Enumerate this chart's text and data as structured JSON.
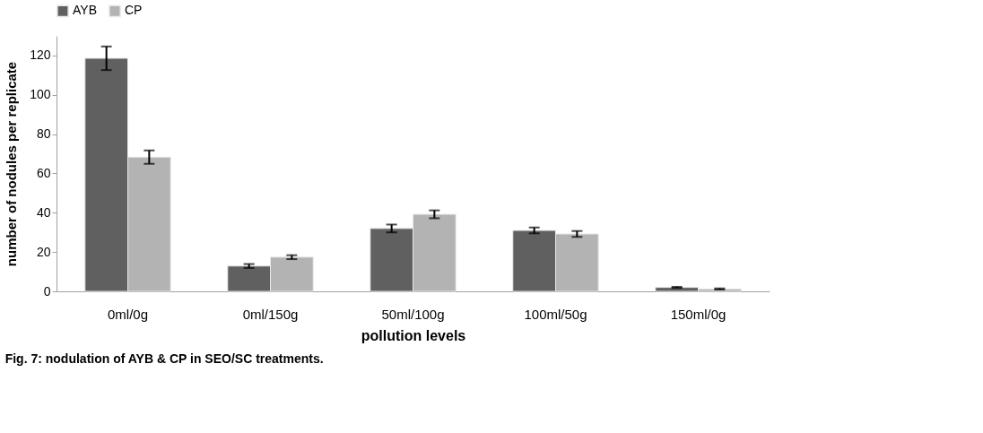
{
  "chart_data": {
    "type": "bar",
    "categories": [
      "0ml/0g",
      "0ml/150g",
      "50ml/100g",
      "100ml/50g",
      "150ml/0g"
    ],
    "series": [
      {
        "name": "AYB",
        "color": "#606060",
        "values": [
          118.6,
          12.9,
          32,
          31,
          2
        ],
        "errors": [
          6,
          1,
          2,
          1.5,
          0.3
        ]
      },
      {
        "name": "CP",
        "color": "#b3b3b3",
        "values": [
          68.3,
          17.4,
          39.2,
          29.2,
          1.2
        ],
        "errors": [
          3.4,
          1,
          2,
          1.5,
          0.3
        ]
      }
    ],
    "xlabel": "pollution levels",
    "ylabel": "number of nodules  per replicate",
    "ylim": [
      0,
      130
    ],
    "yticks": [
      0,
      20,
      40,
      60,
      80,
      100,
      120
    ],
    "annotations": [
      "Fig. 7: nodulation  of AYB & CP in  SEO/SC treatments."
    ],
    "legend": "top",
    "grid": false
  }
}
